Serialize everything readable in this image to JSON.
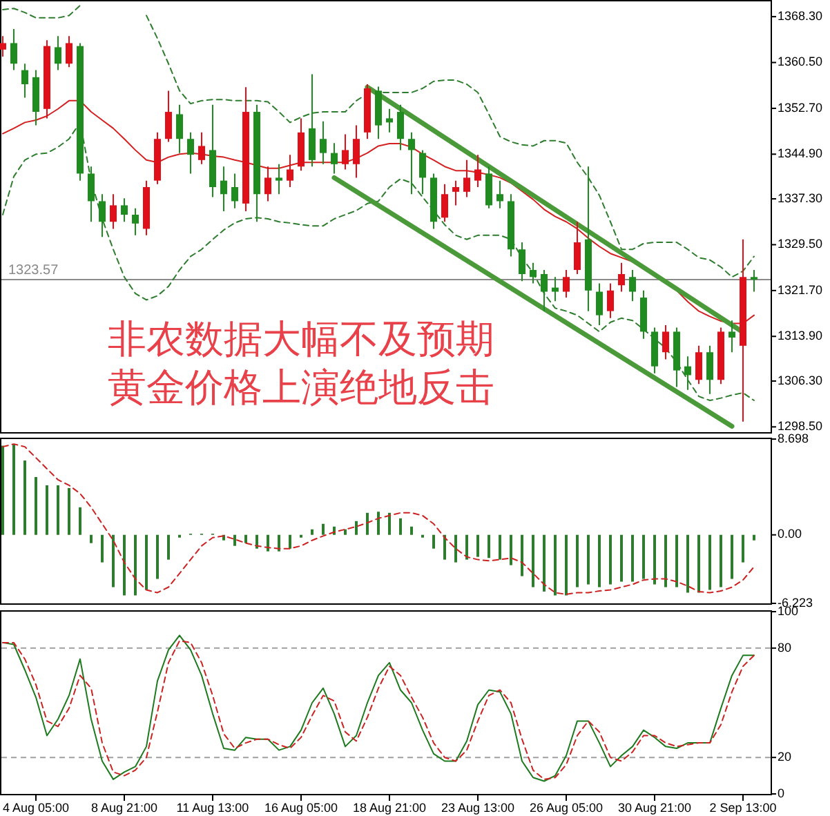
{
  "chart_data": [
    {
      "type": "candlestick",
      "tick_labels": "y",
      "categories": [
        null,
        null,
        null,
        null,
        null,
        null,
        null,
        null,
        null,
        null,
        null,
        null,
        null,
        null,
        null,
        null,
        null,
        null,
        null,
        null,
        null,
        null,
        null,
        null,
        null,
        null,
        null,
        null,
        null,
        null,
        null,
        null,
        null,
        null,
        null,
        null,
        null,
        null,
        null,
        null,
        null,
        null,
        null,
        null,
        null,
        null,
        null,
        null,
        null,
        null,
        null,
        null,
        null,
        null,
        null,
        null,
        null,
        null,
        null,
        null,
        null,
        null,
        null,
        null,
        null,
        null,
        null,
        null,
        null
      ],
      "ohlc": [
        [
          1362.7,
          1365,
          1361.5,
          1363.8
        ],
        [
          1363.8,
          1366.2,
          1359.2,
          1360.3
        ],
        [
          1359.2,
          1360.3,
          1354.5,
          1356.8
        ],
        [
          1358,
          1359.2,
          1349.8,
          1352.1
        ],
        [
          1352.6,
          1364.3,
          1351,
          1363.3
        ],
        [
          1363.1,
          1365,
          1359.2,
          1360.3
        ],
        [
          1360.3,
          1365,
          1359.7,
          1363.8
        ],
        [
          1363.3,
          1363.8,
          1340.4,
          1341.6
        ],
        [
          1341.6,
          1342.8,
          1333.4,
          1336.9
        ],
        [
          1336.9,
          1338.1,
          1330.8,
          1333.4
        ],
        [
          1333.4,
          1338.1,
          1332.2,
          1336.2
        ],
        [
          1336.2,
          1337.4,
          1333.4,
          1334.6
        ],
        [
          1334.6,
          1335.7,
          1331.1,
          1333.1
        ],
        [
          1332.2,
          1340.4,
          1331.1,
          1339.3
        ],
        [
          1340.4,
          1348.6,
          1339.8,
          1347.5
        ],
        [
          1347.5,
          1355.7,
          1347,
          1352.1
        ],
        [
          1351.7,
          1353.3,
          1345.1,
          1347.5
        ],
        [
          1347.5,
          1348.6,
          1341.6,
          1344.8
        ],
        [
          1343.9,
          1348.6,
          1343.2,
          1346.3
        ],
        [
          1345.6,
          1353.3,
          1337.6,
          1339.3
        ],
        [
          1340.4,
          1342.8,
          1335.2,
          1338.1
        ],
        [
          1339.3,
          1341.6,
          1335.7,
          1336.9
        ],
        [
          1336.5,
          1356.3,
          1335.2,
          1352.1
        ],
        [
          1352.1,
          1353.3,
          1333.4,
          1338.1
        ],
        [
          1338.1,
          1342.8,
          1336.9,
          1340.9
        ],
        [
          1340.9,
          1343.2,
          1338.1,
          1340.4
        ],
        [
          1340.4,
          1344.8,
          1339.3,
          1342.3
        ],
        [
          1342.8,
          1351,
          1342.1,
          1348.6
        ],
        [
          1349.3,
          1358.5,
          1342.8,
          1343.9
        ],
        [
          1347.5,
          1350.5,
          1343.2,
          1345.1
        ],
        [
          1345.1,
          1346.8,
          1341.6,
          1343.2
        ],
        [
          1343.2,
          1348.3,
          1342.3,
          1345.6
        ],
        [
          1343.2,
          1349.8,
          1340.9,
          1347.5
        ],
        [
          1348.6,
          1356.8,
          1347.5,
          1356.1
        ],
        [
          1355.7,
          1356.4,
          1347.5,
          1349.8
        ],
        [
          1351,
          1352.6,
          1348.6,
          1350.3
        ],
        [
          1352.1,
          1353.3,
          1345.6,
          1347.5
        ],
        [
          1347.5,
          1348.6,
          1338.1,
          1345.6
        ],
        [
          1345.1,
          1345.6,
          1338.1,
          1340.9
        ],
        [
          1340.9,
          1341.6,
          1332.2,
          1333.4
        ],
        [
          1334.1,
          1339.8,
          1333.4,
          1338.1
        ],
        [
          1338.5,
          1340.4,
          1336.2,
          1339.3
        ],
        [
          1338.5,
          1343.9,
          1337.6,
          1340.9
        ],
        [
          1340.4,
          1344.8,
          1339.3,
          1342.3
        ],
        [
          1341.6,
          1342.8,
          1335.7,
          1336.2
        ],
        [
          1338.1,
          1340.4,
          1335.7,
          1336.9
        ],
        [
          1336.9,
          1338.1,
          1327.5,
          1328.7
        ],
        [
          1328.7,
          1329.9,
          1323.3,
          1324.5
        ],
        [
          1325.2,
          1326.4,
          1322.9,
          1324
        ],
        [
          1324.5,
          1325.2,
          1318.2,
          1321.5
        ],
        [
          1322.2,
          1324,
          1319.9,
          1321.5
        ],
        [
          1321.5,
          1325.2,
          1320.5,
          1324
        ],
        [
          1325.2,
          1333.4,
          1324.5,
          1329.9
        ],
        [
          1330.4,
          1342.8,
          1318.2,
          1321.7
        ],
        [
          1321.5,
          1322.9,
          1315.8,
          1317.5
        ],
        [
          1318.2,
          1322.9,
          1317,
          1321.7
        ],
        [
          1322.6,
          1326.4,
          1321.5,
          1324.5
        ],
        [
          1324,
          1325.2,
          1319.9,
          1321.5
        ],
        [
          1320.5,
          1321.7,
          1313.5,
          1314.7
        ],
        [
          1314.7,
          1315.4,
          1307.6,
          1308.8
        ],
        [
          1311.2,
          1315.8,
          1310,
          1314.7
        ],
        [
          1314.7,
          1315.4,
          1305.3,
          1308.1
        ],
        [
          1308.8,
          1310.5,
          1304.8,
          1307.3
        ],
        [
          1306.5,
          1312.3,
          1305.8,
          1311.2
        ],
        [
          1311.2,
          1312.3,
          1304.1,
          1306.5
        ],
        [
          1306.5,
          1315.4,
          1305.8,
          1314.7
        ],
        [
          1314.7,
          1316.6,
          1311.2,
          1313.7
        ],
        [
          1312.3,
          1330.4,
          1299.4,
          1324
        ],
        [
          1324,
          1325.2,
          1321.5,
          1323.57
        ]
      ],
      "colors": [
        "#e0101a",
        "#1e8c1e",
        "#1e8c1e",
        "#1e8c1e",
        "#e0101a",
        "#1e8c1e",
        "#e0101a",
        "#1e8c1e",
        "#1e8c1e",
        "#1e8c1e",
        "#e0101a",
        "#1e8c1e",
        "#1e8c1e",
        "#e0101a",
        "#e0101a",
        "#e0101a",
        "#1e8c1e",
        "#1e8c1e",
        "#e0101a",
        "#1e8c1e",
        "#1e8c1e",
        "#1e8c1e",
        "#e0101a",
        "#1e8c1e",
        "#e0101a",
        "#1e8c1e",
        "#e0101a",
        "#e0101a",
        "#1e8c1e",
        "#1e8c1e",
        "#1e8c1e",
        "#e0101a",
        "#e0101a",
        "#e0101a",
        "#1e8c1e",
        "#1e8c1e",
        "#1e8c1e",
        "#1e8c1e",
        "#1e8c1e",
        "#1e8c1e",
        "#e0101a",
        "#e0101a",
        "#e0101a",
        "#e0101a",
        "#1e8c1e",
        "#1e8c1e",
        "#1e8c1e",
        "#1e8c1e",
        "#1e8c1e",
        "#1e8c1e",
        "#1e8c1e",
        "#e0101a",
        "#e0101a",
        "#1e8c1e",
        "#1e8c1e",
        "#e0101a",
        "#e0101a",
        "#1e8c1e",
        "#1e8c1e",
        "#1e8c1e",
        "#e0101a",
        "#1e8c1e",
        "#1e8c1e",
        "#e0101a",
        "#1e8c1e",
        "#e0101a",
        "#1e8c1e",
        "#e0101a",
        "#1e8c1e"
      ],
      "series": [
        {
          "type": "line",
          "color": "#2e7d2e",
          "line_style": "dashed",
          "values": [
            1369.5,
            1369.7,
            1369.0,
            1368.1,
            1368.1,
            1368.1,
            1368.5,
            1370.2,
            null,
            null,
            null,
            null,
            null,
            1368.5,
            1364.6,
            1360.3,
            1355.7,
            1353.5,
            1354.0,
            1354.2,
            1354.2,
            1354.0,
            1354.0,
            1354.0,
            1353.8,
            1352.1,
            1350.3,
            1351.2,
            1351.9,
            1352.1,
            1352.1,
            1352.1,
            1354.0,
            1355.2,
            1355.4,
            1355.4,
            1355.4,
            1355.4,
            1356.1,
            1357.3,
            1357.5,
            1357.5,
            1356.8,
            1355.4,
            1351.7,
            1347.9,
            1347.0,
            1346.5,
            1346.3,
            1347.2,
            1347.2,
            1346.8,
            1343.5,
            1340.9,
            1337.9,
            1333.4,
            1328.7,
            1328.7,
            1329.7,
            1329.9,
            1329.9,
            1329.9,
            1328.7,
            1327.3,
            1326.9,
            1325.7,
            1324.0,
            1325.0,
            1327.5
          ]
        },
        {
          "type": "line",
          "color": "#d42020",
          "values": [
            1348.4,
            1349.3,
            1350.3,
            1350.7,
            1351.4,
            1352.6,
            1354.0,
            1354.0,
            1352.1,
            1350.7,
            1349.3,
            1347.5,
            1345.6,
            1343.9,
            1343.5,
            1344.4,
            1344.9,
            1345.1,
            1344.9,
            1344.6,
            1344.4,
            1343.9,
            1343.5,
            1343.0,
            1342.5,
            1342.5,
            1343.0,
            1343.5,
            1343.5,
            1343.5,
            1343.5,
            1343.5,
            1344.2,
            1345.1,
            1346.3,
            1346.7,
            1346.7,
            1346.1,
            1344.9,
            1343.9,
            1342.8,
            1342.1,
            1342.1,
            1341.8,
            1341.4,
            1340.9,
            1340.0,
            1338.6,
            1337.2,
            1335.5,
            1334.3,
            1333.4,
            1332.2,
            1330.6,
            1329.2,
            1328.0,
            1327.3,
            1326.6,
            1325.4,
            1324.3,
            1323.3,
            1321.7,
            1319.8,
            1318.2,
            1317.3,
            1316.5,
            1316.1,
            1316.1,
            1317.5
          ]
        },
        {
          "type": "line",
          "color": "#2e7d2e",
          "line_style": "dashed",
          "values": [
            1334.6,
            1341.1,
            1343.9,
            1344.9,
            1345.1,
            1346.1,
            1347.5,
            1350.3,
            1340.4,
            1333.9,
            1328.7,
            1324.0,
            1321.2,
            1320.1,
            1320.8,
            1322.4,
            1325.2,
            1327.5,
            1328.7,
            1330.4,
            1332.0,
            1333.2,
            1333.9,
            1334.1,
            1333.9,
            1333.4,
            1333.2,
            1332.9,
            1332.7,
            1332.7,
            1333.9,
            1334.6,
            1335.3,
            1336.5,
            1336.9,
            1339.3,
            1340.7,
            1340.0,
            1337.6,
            1335.3,
            1332.9,
            1331.1,
            1330.4,
            1331.1,
            1331.1,
            1331.1,
            1330.4,
            1327.3,
            1324.7,
            1321.2,
            1318.7,
            1318.2,
            1317.5,
            1316.1,
            1314.7,
            1316.3,
            1317.0,
            1316.6,
            1315.1,
            1313.5,
            1311.9,
            1309.5,
            1306.5,
            1303.7,
            1303.0,
            1303.4,
            1303.9,
            1304.3,
            1303.0
          ]
        },
        {
          "type": "line",
          "color": "#4a9a3a",
          "values": [
            null,
            null,
            null,
            null,
            null,
            null,
            null,
            null,
            null,
            null,
            null,
            null,
            null,
            null,
            null,
            null,
            null,
            null,
            null,
            null,
            null,
            null,
            null,
            null,
            null,
            null,
            null,
            null,
            null,
            null,
            null,
            null,
            null,
            1356.3,
            null,
            null,
            null,
            null,
            null,
            null,
            null,
            null,
            null,
            null,
            null,
            null,
            null,
            null,
            null,
            null,
            null,
            null,
            null,
            null,
            null,
            null,
            null,
            null,
            null,
            null,
            null,
            null,
            null,
            null,
            null,
            null,
            null,
            1314.6,
            null
          ]
        },
        {
          "type": "line",
          "color": "#4a9a3a",
          "values": [
            null,
            null,
            null,
            null,
            null,
            null,
            null,
            null,
            null,
            null,
            null,
            null,
            null,
            null,
            null,
            null,
            null,
            null,
            null,
            null,
            null,
            null,
            null,
            null,
            null,
            null,
            null,
            null,
            null,
            null,
            1340.9,
            null,
            null,
            null,
            null,
            null,
            null,
            null,
            null,
            null,
            null,
            null,
            null,
            null,
            null,
            null,
            null,
            null,
            null,
            null,
            null,
            null,
            null,
            null,
            null,
            null,
            null,
            null,
            null,
            null,
            null,
            null,
            null,
            null,
            null,
            null,
            1298.6,
            null,
            null
          ]
        }
      ],
      "ylim": [
        1297.6,
        1370.9
      ],
      "yticks": [
        {
          "value": 1368.3,
          "label": "1368.30"
        },
        {
          "value": 1360.5,
          "label": "1360.50"
        },
        {
          "value": 1352.7,
          "label": "1352.70"
        },
        {
          "value": 1344.9,
          "label": "1344.90"
        },
        {
          "value": 1337.3,
          "label": "1337.30"
        },
        {
          "value": 1329.5,
          "label": "1329.50"
        },
        {
          "value": 1321.7,
          "label": "1321.70"
        },
        {
          "value": 1313.9,
          "label": "1313.90"
        },
        {
          "value": 1306.3,
          "label": "1306.30"
        },
        {
          "value": 1298.5,
          "label": "1298.50"
        }
      ],
      "ref_lines": [
        {
          "axis": "y",
          "value": 1323.57,
          "label": "1323.57",
          "color": "#8a8a8a"
        }
      ],
      "annotations": [
        "非农数据大幅不及预期",
        "黄金价格上演绝地反击"
      ]
    },
    {
      "type": "bar",
      "tick_labels": "y",
      "categories": [
        null,
        null,
        null,
        null,
        null,
        null,
        null,
        null,
        null,
        null,
        null,
        null,
        null,
        null,
        null,
        null,
        null,
        null,
        null,
        null,
        null,
        null,
        null,
        null,
        null,
        null,
        null,
        null,
        null,
        null,
        null,
        null,
        null,
        null,
        null,
        null,
        null,
        null,
        null,
        null,
        null,
        null,
        null,
        null,
        null,
        null,
        null,
        null,
        null,
        null,
        null,
        null,
        null,
        null,
        null,
        null,
        null,
        null,
        null,
        null,
        null,
        null,
        null,
        null,
        null,
        null,
        null,
        null,
        null
      ],
      "series": [
        {
          "type": "bar",
          "color": "#2e7d2e",
          "values": [
            8.1,
            8.2,
            6.75,
            5.25,
            4.5,
            4.5,
            4.25,
            2.5,
            -0.75,
            -2.5,
            -4.75,
            -5.5,
            -5.5,
            -5.0,
            -4.0,
            -2.25,
            -0.25,
            0.1,
            0.1,
            0.1,
            -0.5,
            -1.0,
            -0.75,
            -1.25,
            -1.5,
            -1.5,
            -1.25,
            -0.25,
            0.5,
            1.0,
            0.75,
            0.5,
            1.25,
            2.0,
            2.1,
            2.0,
            1.5,
            0.75,
            -0.25,
            -1.25,
            -2.25,
            -2.5,
            -2.25,
            -2.0,
            -2.1,
            -2.25,
            -2.75,
            -3.75,
            -4.75,
            -5.15,
            -5.5,
            -5.5,
            -4.75,
            -4.5,
            -4.75,
            -4.5,
            -4.25,
            -4.25,
            -4.0,
            -4.5,
            -4.75,
            -4.75,
            -5.25,
            -5.25,
            -5.0,
            -4.75,
            -4.0,
            -2.5,
            -0.5
          ]
        },
        {
          "type": "line",
          "color": "#cc2222",
          "line_style": "dashed",
          "values": [
            8.0,
            8.25,
            8.0,
            7.0,
            6.0,
            5.0,
            4.5,
            3.75,
            2.5,
            1.0,
            -0.5,
            -2.5,
            -4.0,
            -5.0,
            -5.25,
            -4.75,
            -3.5,
            -2.25,
            -1.0,
            -0.25,
            -0.1,
            -0.4,
            -0.75,
            -1.0,
            -1.15,
            -1.25,
            -1.25,
            -1.0,
            -0.5,
            -0.1,
            0.25,
            0.5,
            0.75,
            1.1,
            1.5,
            1.75,
            2.0,
            2.0,
            1.75,
            1.0,
            -0.25,
            -1.25,
            -2.0,
            -2.25,
            -2.35,
            -2.25,
            -2.1,
            -2.5,
            -3.5,
            -4.5,
            -5.25,
            -5.4,
            -5.25,
            -5.25,
            -5.1,
            -5.0,
            -4.75,
            -4.5,
            -4.1,
            -4.0,
            -4.0,
            -4.25,
            -4.65,
            -5.15,
            -5.25,
            -5.1,
            -4.75,
            -4.1,
            -2.9
          ]
        }
      ],
      "ylim": [
        -6.223,
        8.698
      ],
      "yticks": [
        8.698,
        {
          "value": 0,
          "label": "0.00"
        },
        -6.223
      ]
    },
    {
      "type": "line",
      "categories": [
        null,
        null,
        null,
        "4 Aug 05:00",
        null,
        null,
        null,
        null,
        null,
        null,
        null,
        "8 Aug 21:00",
        null,
        null,
        null,
        null,
        null,
        null,
        null,
        "11 Aug 13:00",
        null,
        null,
        null,
        null,
        null,
        null,
        null,
        "16 Aug 05:00",
        null,
        null,
        null,
        null,
        null,
        null,
        null,
        "18 Aug 21:00",
        null,
        null,
        null,
        null,
        null,
        null,
        null,
        "23 Aug 13:00",
        null,
        null,
        null,
        null,
        null,
        null,
        null,
        "26 Aug 05:00",
        null,
        null,
        null,
        null,
        null,
        null,
        null,
        "30 Aug 21:00",
        null,
        null,
        null,
        null,
        null,
        null,
        null,
        "2 Sep 13:00",
        null
      ],
      "series": [
        {
          "color": "#1e7a1e",
          "values": [
            83,
            82,
            68,
            53,
            32,
            41,
            54,
            74,
            41,
            18,
            8,
            12,
            15,
            26,
            62,
            79,
            87,
            79,
            65,
            44,
            25,
            24,
            31,
            30,
            30,
            24,
            26,
            35,
            50,
            58,
            44,
            26,
            32,
            50,
            65,
            72,
            57,
            50,
            35,
            22,
            18,
            18,
            29,
            49,
            57,
            56,
            44,
            18,
            9,
            7,
            10,
            21,
            40,
            40,
            28,
            15,
            21,
            26,
            35,
            31,
            26,
            25,
            28,
            28,
            28,
            47,
            65,
            76,
            76
          ]
        },
        {
          "color": "#cc2222",
          "line_style": "dashed",
          "values": [
            83,
            83,
            74,
            60,
            40,
            37,
            47,
            65,
            58,
            28,
            12,
            10,
            13,
            20,
            45,
            72,
            84,
            83,
            72,
            54,
            33,
            25,
            28,
            30,
            30,
            27,
            25,
            31,
            43,
            54,
            51,
            34,
            29,
            42,
            58,
            70,
            65,
            53,
            42,
            28,
            20,
            18,
            24,
            40,
            54,
            57,
            50,
            30,
            13,
            8,
            9,
            16,
            32,
            40,
            34,
            20,
            18,
            23,
            32,
            32,
            28,
            26,
            27,
            28,
            28,
            38,
            56,
            70,
            76
          ]
        }
      ],
      "ylim": [
        0,
        100
      ],
      "yticks": [
        0,
        20,
        80,
        100
      ],
      "ref_lines": [
        {
          "axis": "y",
          "value": 20,
          "color": "#a0a0a0",
          "line_style": "dashed"
        },
        {
          "axis": "y",
          "value": 80,
          "color": "#a0a0a0",
          "line_style": "dashed"
        }
      ]
    }
  ]
}
